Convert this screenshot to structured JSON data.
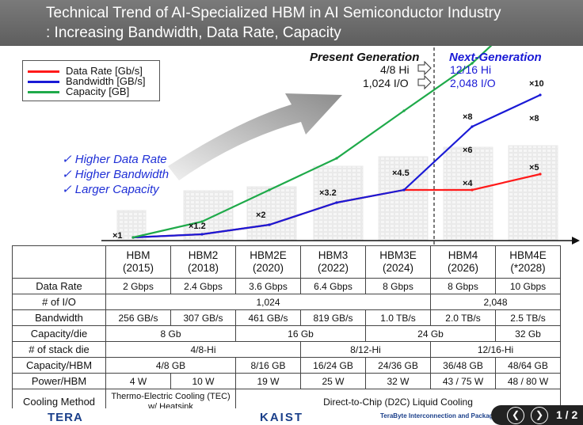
{
  "title": {
    "line1": "Technical Trend of AI-Specialized HBM in AI Semiconductor Industry",
    "line2": ": Increasing Bandwidth, Data Rate, Capacity"
  },
  "legend": [
    {
      "label": "Data Rate [Gb/s]",
      "color": "#ff1a1a"
    },
    {
      "label": "Bandwidth [GB/s]",
      "color": "#1a1ad6"
    },
    {
      "label": "Capacity [GB]",
      "color": "#1faa4a"
    }
  ],
  "generations": {
    "present": "Present Generation",
    "next": "Next-Generation"
  },
  "present_spec": {
    "hi": "4/8 Hi",
    "io": "1,024 I/O"
  },
  "next_spec": {
    "hi": "12/16 Hi",
    "io": "2,048 I/O"
  },
  "highlights": [
    "✓  Higher Data Rate",
    "✓  Higher Bandwidth",
    "✓  Larger Capacity"
  ],
  "chart_data": {
    "type": "line",
    "title": "",
    "x": [
      "HBM",
      "HBM2",
      "HBM2E",
      "HBM3",
      "HBM3E",
      "HBM4",
      "HBM4E"
    ],
    "series": [
      {
        "name": "Data Rate [Gb/s]",
        "color": "#ff1a1a",
        "values": [
          2,
          2.4,
          3.6,
          6.4,
          8,
          8,
          10
        ]
      },
      {
        "name": "Bandwidth [GB/s]",
        "color": "#1a1ad6",
        "values": [
          256,
          307,
          461,
          819,
          1024,
          2048,
          2560
        ]
      },
      {
        "name": "Capacity [GB]",
        "color": "#1faa4a",
        "values": [
          4,
          8,
          16,
          24,
          36,
          48,
          64
        ]
      }
    ],
    "multipliers": [
      "×1",
      "×1.2",
      "×2",
      "×3.2",
      "×4.5",
      "×4",
      "×6",
      "×8",
      "×5",
      "×8",
      "×10"
    ]
  },
  "table": {
    "headers": [
      {
        "name": "HBM",
        "year": "(2015)"
      },
      {
        "name": "HBM2",
        "year": "(2018)"
      },
      {
        "name": "HBM2E",
        "year": "(2020)"
      },
      {
        "name": "HBM3",
        "year": "(2022)"
      },
      {
        "name": "HBM3E",
        "year": "(2024)"
      },
      {
        "name": "HBM4",
        "year": "(2026)"
      },
      {
        "name": "HBM4E",
        "year": "(*2028)"
      }
    ],
    "row_labels": [
      "Data Rate",
      "# of I/O",
      "Bandwidth",
      "Capacity/die",
      "# of stack die",
      "Capacity/HBM",
      "Power/HBM",
      "Cooling Method"
    ],
    "data_rate": [
      "2 Gbps",
      "2.4 Gbps",
      "3.6 Gbps",
      "6.4 Gbps",
      "8 Gbps",
      "8 Gbps",
      "10 Gbps"
    ],
    "io": [
      "1,024",
      "2,048"
    ],
    "bandwidth": [
      "256 GB/s",
      "307 GB/s",
      "461 GB/s",
      "819 GB/s",
      "1.0 TB/s",
      "2.0 TB/s",
      "2.5 TB/s"
    ],
    "capacity_die": [
      "8 Gb",
      "16 Gb",
      "24 Gb",
      "32 Gb"
    ],
    "stack_die": [
      "4/8-Hi",
      "8/12-Hi",
      "12/16-Hi"
    ],
    "capacity_hbm": [
      "4/8 GB",
      "8/16 GB",
      "16/24 GB",
      "24/36 GB",
      "36/48 GB",
      "48/64 GB"
    ],
    "power": [
      "4 W",
      "10 W",
      "19 W",
      "25 W",
      "32 W",
      "43 / 75 W",
      "48 / 80 W"
    ],
    "cooling": [
      "Thermo-Electric Cooling (TEC) w/ Heatsink",
      "Direct-to-Chip (D2C) Liquid Cooling"
    ]
  },
  "footer": {
    "left_logo": "TERA",
    "center_logo": "KAIST",
    "caption": "TeraByte Interconnection and Package Laboratory",
    "page": "1 / 2"
  }
}
